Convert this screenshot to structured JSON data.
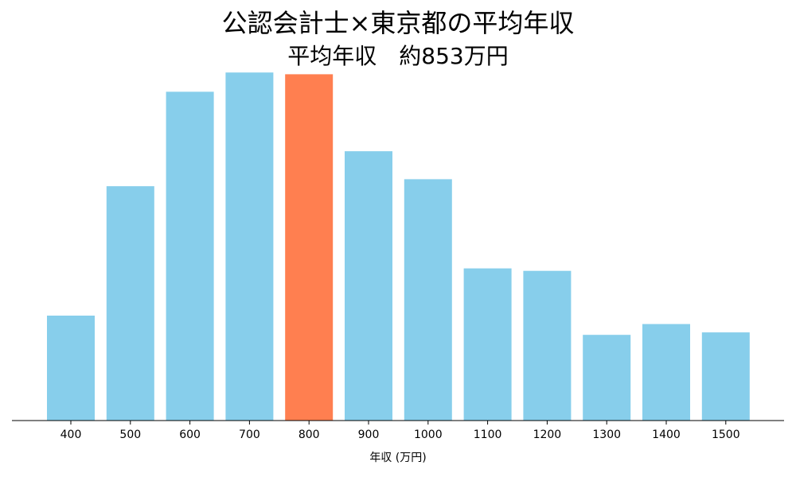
{
  "chart_data": {
    "type": "bar",
    "title": "公認会計士×東京都の平均年収",
    "subtitle": "平均年収　約853万円",
    "xlabel": "年収 (万円)",
    "ylabel": "",
    "categories": [
      "400",
      "500",
      "600",
      "700",
      "800",
      "900",
      "1000",
      "1100",
      "1200",
      "1300",
      "1400",
      "1500"
    ],
    "values": [
      30,
      67,
      94,
      99.5,
      99,
      77,
      69,
      43.5,
      42.8,
      24.5,
      27.6,
      25.2
    ],
    "ylim": [
      0,
      100
    ],
    "highlight_category": "800",
    "grid": false,
    "legend": "none",
    "colors": {
      "bar": "#87CEEB",
      "highlight": "#FF7F50",
      "axis": "#000000"
    }
  }
}
